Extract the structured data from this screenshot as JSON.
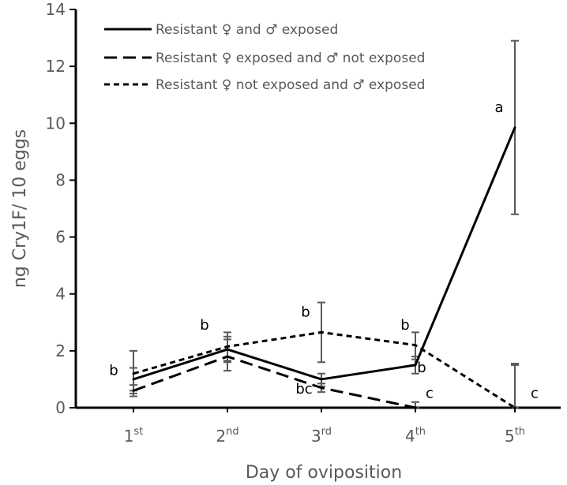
{
  "chart_data": {
    "type": "line",
    "title": "",
    "xlabel": "Day of oviposition",
    "ylabel": "ng Cry1F/ 10 eggs",
    "ylim": [
      0,
      14
    ],
    "yticks": [
      0,
      2,
      4,
      6,
      8,
      10,
      12,
      14
    ],
    "grid": false,
    "legend_position": "top-left",
    "categories": [
      {
        "base": "1",
        "sup": "st"
      },
      {
        "base": "2",
        "sup": "nd"
      },
      {
        "base": "3",
        "sup": "rd"
      },
      {
        "base": "4",
        "sup": "th"
      },
      {
        "base": "5",
        "sup": "th"
      }
    ],
    "series": [
      {
        "name": "Resistant ♀ and ♂ exposed",
        "dash": "solid",
        "values": [
          1.0,
          2.05,
          1.0,
          1.5,
          9.85
        ],
        "err_low": [
          0.6,
          1.6,
          0.75,
          1.2,
          6.8
        ],
        "err_high": [
          1.4,
          2.5,
          1.2,
          1.8,
          12.9
        ]
      },
      {
        "name": "Resistant ♀ exposed and ♂ not exposed",
        "dash": "long",
        "values": [
          0.6,
          1.8,
          0.7,
          0.0,
          0.0
        ],
        "err_low": [
          0.4,
          1.3,
          0.55,
          0.0,
          0.0
        ],
        "err_high": [
          0.8,
          2.4,
          0.85,
          0.2,
          1.5
        ]
      },
      {
        "name": "Resistant ♀ not exposed and ♂ exposed",
        "dash": "short",
        "values": [
          1.2,
          2.15,
          2.65,
          2.2,
          0.0
        ],
        "err_low": [
          0.5,
          1.65,
          1.6,
          1.7,
          0.0
        ],
        "err_high": [
          2.0,
          2.65,
          3.7,
          2.65,
          1.55
        ]
      }
    ],
    "annotations": [
      {
        "text": "b",
        "x": 0,
        "y": 1.15
      },
      {
        "text": "b",
        "x": 1,
        "y": 2.75
      },
      {
        "text": "b",
        "x": 2,
        "y": 3.2
      },
      {
        "text": "bc",
        "x": 2,
        "y": 0.5
      },
      {
        "text": "b",
        "x": 3,
        "y": 2.75
      },
      {
        "text": "b",
        "x": 3,
        "y": 1.25
      },
      {
        "text": "c",
        "x": 3,
        "y": 0.35
      },
      {
        "text": "a",
        "x": 4,
        "y": 10.4
      },
      {
        "text": "c",
        "x": 4,
        "y": 0.35
      }
    ]
  }
}
